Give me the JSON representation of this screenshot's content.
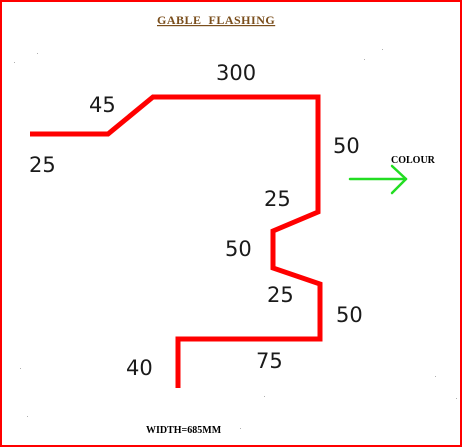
{
  "title": "GABLE  FLASHING",
  "dimensions": {
    "d25_left": "25",
    "d45": "45",
    "d300": "300",
    "d50_right_top": "50",
    "d25_upper": "25",
    "d50_middle": "50",
    "d25_lower": "25",
    "d50_right_bottom": "50",
    "d75": "75",
    "d40": "40"
  },
  "colour_label": "COLOUR",
  "width_label": "WIDTH=685MM",
  "colors": {
    "border": "#ff0000",
    "profile": "#ff0000",
    "arrow": "#22dd22",
    "title": "#7a4e1c"
  },
  "icons": {
    "colour_arrow": "arrow-right-icon"
  }
}
